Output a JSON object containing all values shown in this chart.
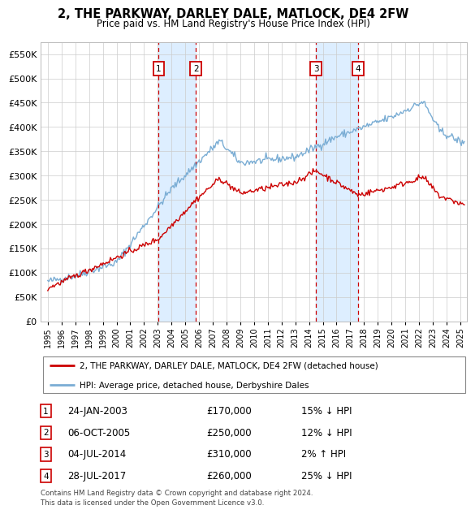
{
  "title": "2, THE PARKWAY, DARLEY DALE, MATLOCK, DE4 2FW",
  "subtitle": "Price paid vs. HM Land Registry's House Price Index (HPI)",
  "footer": "Contains HM Land Registry data © Crown copyright and database right 2024.\nThis data is licensed under the Open Government Licence v3.0.",
  "legend_line1": "2, THE PARKWAY, DARLEY DALE, MATLOCK, DE4 2FW (detached house)",
  "legend_line2": "HPI: Average price, detached house, Derbyshire Dales",
  "transactions": [
    {
      "num": 1,
      "date": "24-JAN-2003",
      "price": 170000,
      "hpi_diff": "15% ↓ HPI",
      "year_x": 2003.07
    },
    {
      "num": 2,
      "date": "06-OCT-2005",
      "price": 250000,
      "hpi_diff": "12% ↓ HPI",
      "year_x": 2005.77
    },
    {
      "num": 3,
      "date": "04-JUL-2014",
      "price": 310000,
      "hpi_diff": "2% ↑ HPI",
      "year_x": 2014.51
    },
    {
      "num": 4,
      "date": "28-JUL-2017",
      "price": 260000,
      "hpi_diff": "25% ↓ HPI",
      "year_x": 2017.58
    }
  ],
  "price_line_color": "#cc0000",
  "hpi_line_color": "#7aadd4",
  "shade_color": "#ddeeff",
  "vline_color": "#cc0000",
  "marker_box_color": "#cc0000",
  "ylim": [
    0,
    575000
  ],
  "yticks": [
    0,
    50000,
    100000,
    150000,
    200000,
    250000,
    300000,
    350000,
    400000,
    450000,
    500000,
    550000
  ],
  "xlim_start": 1994.5,
  "xlim_end": 2025.5,
  "background_color": "#ffffff",
  "grid_color": "#cccccc"
}
